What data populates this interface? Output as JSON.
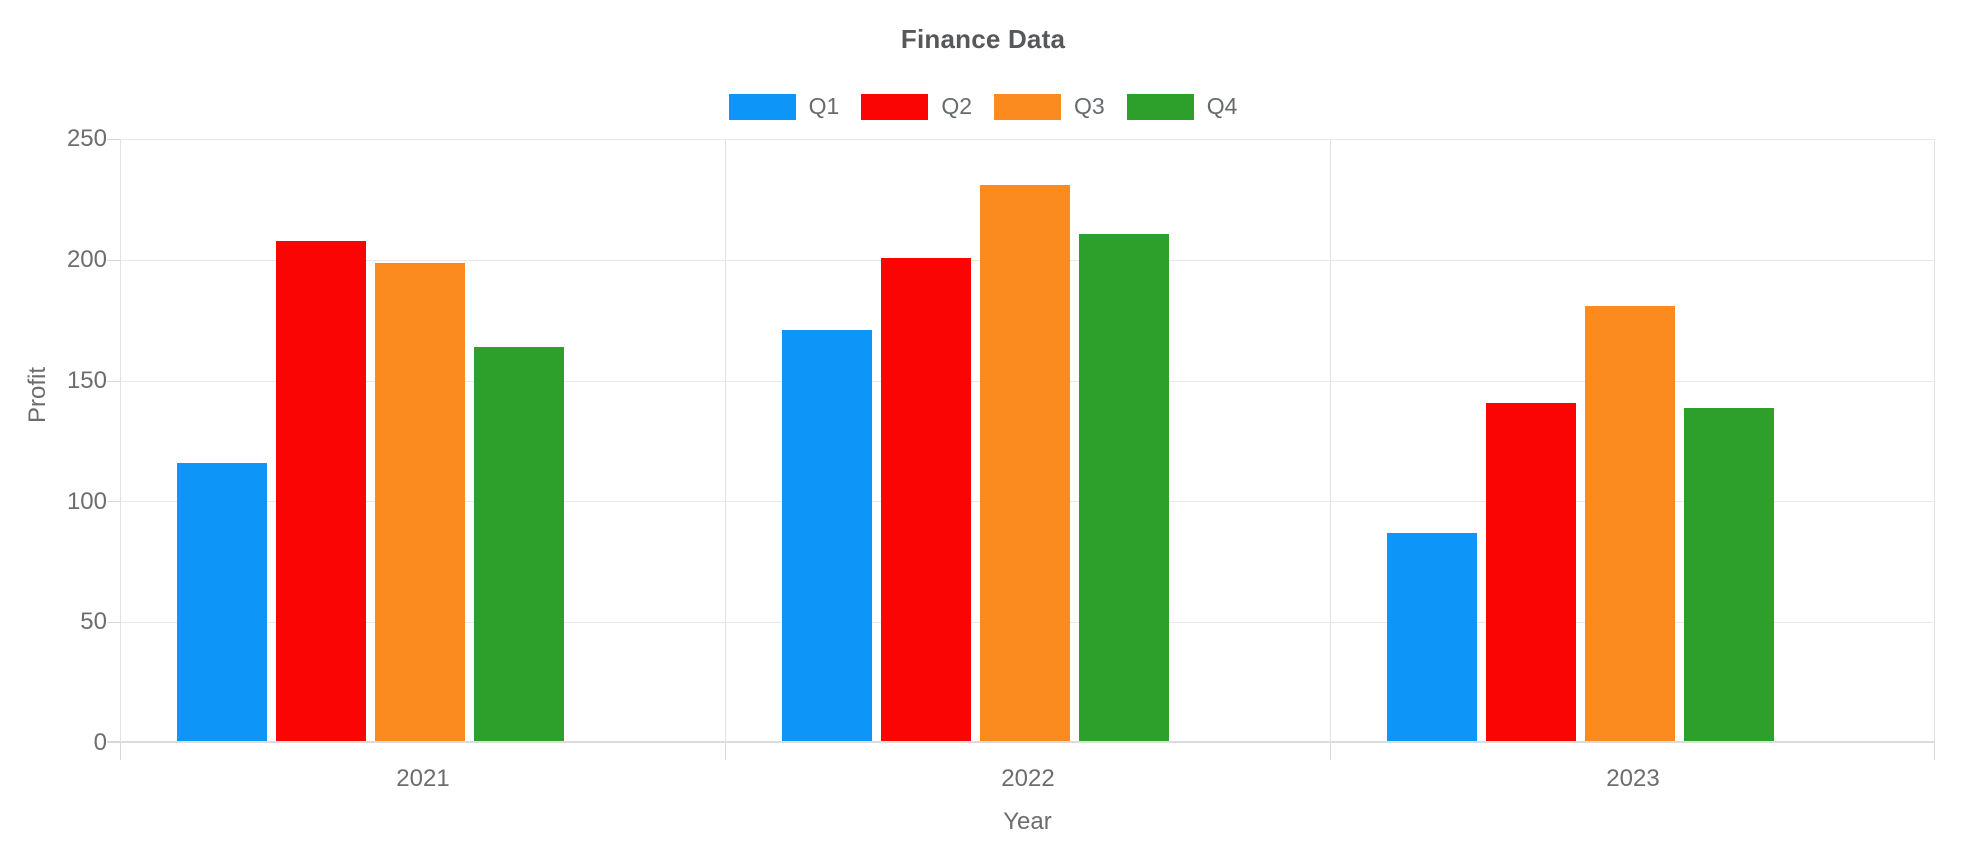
{
  "title": "Finance Data",
  "axes": {
    "x_label": "Year",
    "y_label": "Profit"
  },
  "chart_data": {
    "type": "bar",
    "title": "Finance Data",
    "categories": [
      "2021",
      "2022",
      "2023"
    ],
    "series": [
      {
        "name": "Q1",
        "color": "#0D96F8",
        "values": [
          115,
          170,
          86
        ]
      },
      {
        "name": "Q2",
        "color": "#FA0404",
        "values": [
          207,
          200,
          140
        ]
      },
      {
        "name": "Q3",
        "color": "#FB8B1E",
        "values": [
          198,
          230,
          180
        ]
      },
      {
        "name": "Q4",
        "color": "#2DA02C",
        "values": [
          163,
          210,
          138
        ]
      }
    ],
    "xlabel": "Year",
    "ylabel": "Profit",
    "ylim": [
      0,
      250
    ],
    "y_ticks": [
      0,
      50,
      100,
      150,
      200,
      250
    ],
    "grid": true,
    "legend_position": "top-center",
    "gridline_color": "#e9e9e9",
    "text_color": "#6d6d6d"
  }
}
